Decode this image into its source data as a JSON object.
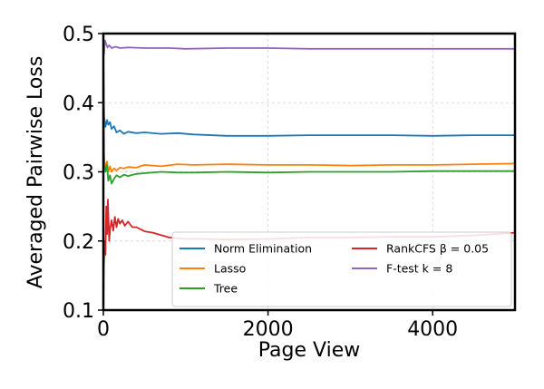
{
  "chart_data": {
    "type": "line",
    "title": "",
    "xlabel": "Page View",
    "ylabel": "Averaged Pairwise Loss",
    "xlim": [
      0,
      5000
    ],
    "ylim": [
      0.1,
      0.5
    ],
    "xticks": [
      0,
      2000,
      4000
    ],
    "xtick_labels": [
      "0",
      "2000",
      "4000"
    ],
    "yticks": [
      0.1,
      0.2,
      0.3,
      0.4,
      0.5
    ],
    "ytick_labels": [
      "0.1",
      "0.2",
      "0.3",
      "0.4",
      "0.5"
    ],
    "grid": true,
    "legend_position": "bottom-right",
    "series": [
      {
        "name": "Norm Elimination",
        "color": "#1f77b4",
        "x": [
          0,
          10,
          25,
          45,
          60,
          80,
          100,
          130,
          160,
          200,
          250,
          300,
          400,
          500,
          700,
          900,
          1100,
          1500,
          2000,
          2500,
          3000,
          3500,
          4000,
          4500,
          5000
        ],
        "y": [
          0.46,
          0.38,
          0.365,
          0.375,
          0.368,
          0.372,
          0.362,
          0.366,
          0.357,
          0.36,
          0.355,
          0.358,
          0.356,
          0.357,
          0.355,
          0.356,
          0.354,
          0.352,
          0.352,
          0.353,
          0.353,
          0.353,
          0.352,
          0.353,
          0.353
        ]
      },
      {
        "name": "Lasso",
        "color": "#ff7f0e",
        "x": [
          0,
          10,
          25,
          45,
          60,
          80,
          100,
          130,
          160,
          200,
          250,
          300,
          400,
          500,
          700,
          900,
          1100,
          1500,
          2000,
          2500,
          3000,
          3500,
          4000,
          4500,
          5000
        ],
        "y": [
          0.35,
          0.32,
          0.305,
          0.315,
          0.3,
          0.308,
          0.3,
          0.305,
          0.302,
          0.306,
          0.305,
          0.307,
          0.306,
          0.31,
          0.308,
          0.311,
          0.31,
          0.311,
          0.31,
          0.31,
          0.309,
          0.31,
          0.31,
          0.311,
          0.312
        ]
      },
      {
        "name": "Tree",
        "color": "#2ca02c",
        "x": [
          0,
          10,
          25,
          45,
          60,
          80,
          100,
          130,
          160,
          200,
          250,
          300,
          400,
          500,
          700,
          900,
          1100,
          1500,
          2000,
          2500,
          3000,
          3500,
          4000,
          4500,
          5000
        ],
        "y": [
          0.47,
          0.315,
          0.3,
          0.31,
          0.287,
          0.295,
          0.283,
          0.29,
          0.295,
          0.292,
          0.296,
          0.294,
          0.297,
          0.298,
          0.3,
          0.299,
          0.299,
          0.3,
          0.299,
          0.3,
          0.3,
          0.3,
          0.301,
          0.301,
          0.301
        ]
      },
      {
        "name": "RankCFS β = 0.05",
        "color": "#d62728",
        "x": [
          0,
          5,
          15,
          25,
          35,
          45,
          55,
          70,
          85,
          100,
          120,
          140,
          160,
          180,
          200,
          230,
          260,
          300,
          350,
          400,
          500,
          600,
          800,
          1000,
          1200,
          1500,
          2000,
          2500,
          3000,
          3500,
          4000,
          4500,
          5000
        ],
        "y": [
          0.1,
          0.16,
          0.2,
          0.18,
          0.25,
          0.21,
          0.26,
          0.2,
          0.22,
          0.23,
          0.215,
          0.235,
          0.22,
          0.232,
          0.225,
          0.23,
          0.222,
          0.228,
          0.22,
          0.22,
          0.214,
          0.212,
          0.205,
          0.203,
          0.203,
          0.202,
          0.203,
          0.205,
          0.205,
          0.206,
          0.206,
          0.208,
          0.212
        ]
      },
      {
        "name": "F-test k = 8",
        "color": "#9467bd",
        "x": [
          0,
          8,
          20,
          35,
          50,
          70,
          100,
          150,
          200,
          300,
          500,
          800,
          1000,
          1500,
          2000,
          2500,
          3000,
          3500,
          4000,
          4500,
          5000
        ],
        "y": [
          0.5,
          0.47,
          0.49,
          0.485,
          0.48,
          0.483,
          0.479,
          0.481,
          0.479,
          0.48,
          0.479,
          0.479,
          0.478,
          0.479,
          0.479,
          0.478,
          0.478,
          0.478,
          0.478,
          0.478,
          0.478
        ]
      }
    ]
  }
}
